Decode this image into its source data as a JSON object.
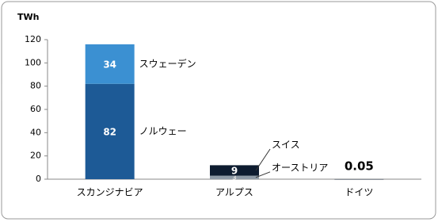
{
  "chart_data": {
    "type": "stacked-bar",
    "y_label": "TWh",
    "categories": [
      "スカンジナビア",
      "アルプス",
      "ドイツ"
    ],
    "series": [
      {
        "name": "ノルウェー",
        "color": "#1d5a96",
        "values": [
          82,
          null,
          null
        ]
      },
      {
        "name": "スウェーデン",
        "color": "#3b90d2",
        "values": [
          34,
          null,
          null
        ]
      },
      {
        "name": "オーストリア",
        "color": "#8e9aa6",
        "values": [
          null,
          3,
          null
        ]
      },
      {
        "name": "スイス",
        "color": "#0e1c30",
        "values": [
          null,
          9,
          null
        ]
      },
      {
        "color": "#0e1c30",
        "values": [
          null,
          null,
          0.05
        ]
      }
    ],
    "ylim": [
      0,
      120
    ],
    "yticks": [
      0,
      20,
      40,
      60,
      80,
      100,
      120
    ]
  }
}
